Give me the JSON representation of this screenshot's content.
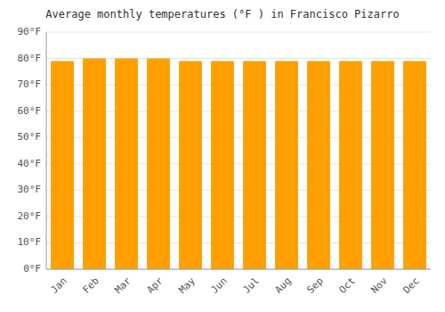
{
  "chart_data": {
    "type": "bar",
    "title": "Average monthly temperatures (°F ) in Francisco Pizarro",
    "categories": [
      "Jan",
      "Feb",
      "Mar",
      "Apr",
      "May",
      "Jun",
      "Jul",
      "Aug",
      "Sep",
      "Oct",
      "Nov",
      "Dec"
    ],
    "values": [
      79,
      80,
      80,
      80,
      79,
      79,
      79,
      79,
      79,
      79,
      79,
      79
    ],
    "color": "#FFA000",
    "ylim": [
      0,
      90
    ],
    "yticks": [
      {
        "value": 0,
        "label": "0°F"
      },
      {
        "value": 10,
        "label": "10°F"
      },
      {
        "value": 20,
        "label": "20°F"
      },
      {
        "value": 30,
        "label": "30°F"
      },
      {
        "value": 40,
        "label": "40°F"
      },
      {
        "value": 50,
        "label": "50°F"
      },
      {
        "value": 60,
        "label": "60°F"
      },
      {
        "value": 70,
        "label": "70°F"
      },
      {
        "value": 80,
        "label": "80°F"
      },
      {
        "value": 90,
        "label": "90°F"
      }
    ],
    "grid": true
  }
}
